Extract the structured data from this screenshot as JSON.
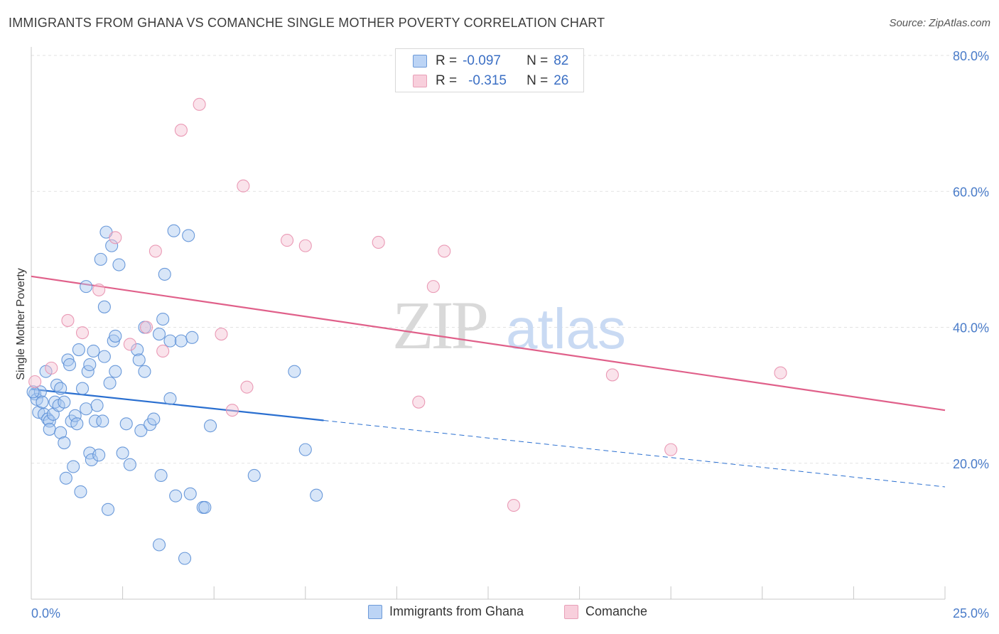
{
  "header": {
    "title": "IMMIGRANTS FROM GHANA VS COMANCHE SINGLE MOTHER POVERTY CORRELATION CHART",
    "source": "Source: ZipAtlas.com"
  },
  "watermark": {
    "zip": "ZIP",
    "atlas": "atlas"
  },
  "colors": {
    "blue_fill": "#a9c8f0",
    "blue_stroke": "#5b8fd6",
    "blue_line": "#2a6fd0",
    "pink_fill": "#f5c0d2",
    "pink_stroke": "#e890ae",
    "pink_line": "#e0608a",
    "tick_text": "#4a7cc9"
  },
  "legend": {
    "r_label": "R =",
    "n_label": "N =",
    "series": [
      {
        "r": "-0.097",
        "n": "82"
      },
      {
        "r": "-0.315",
        "n": "26"
      }
    ]
  },
  "chart_data": {
    "type": "scatter",
    "xlabel": "",
    "ylabel": "Single Mother Poverty",
    "xlim": [
      0,
      25
    ],
    "ylim": [
      0,
      80
    ],
    "x_tick_labels": [
      "0.0%",
      "25.0%"
    ],
    "y_ticks": [
      20,
      40,
      60,
      80
    ],
    "y_tick_labels": [
      "20.0%",
      "40.0%",
      "60.0%",
      "80.0%"
    ],
    "grid": true,
    "legend_position": "bottom",
    "series": [
      {
        "name": "Immigrants from Ghana",
        "color": "#a9c8f0",
        "points": [
          [
            0.1,
            30.2
          ],
          [
            0.15,
            29.4
          ],
          [
            0.2,
            27.5
          ],
          [
            0.25,
            30.5
          ],
          [
            0.3,
            29
          ],
          [
            0.35,
            27.2
          ],
          [
            0.4,
            33.5
          ],
          [
            0.45,
            26.5
          ],
          [
            0.5,
            26.2
          ],
          [
            0.5,
            25
          ],
          [
            0.6,
            27.2
          ],
          [
            0.65,
            29
          ],
          [
            0.7,
            31.5
          ],
          [
            0.75,
            28.5
          ],
          [
            0.8,
            31
          ],
          [
            0.8,
            24.5
          ],
          [
            0.9,
            23
          ],
          [
            0.9,
            29
          ],
          [
            0.95,
            17.8
          ],
          [
            1.0,
            35.2
          ],
          [
            1.05,
            34.5
          ],
          [
            1.1,
            26.2
          ],
          [
            1.15,
            19.5
          ],
          [
            1.2,
            27
          ],
          [
            1.25,
            25.8
          ],
          [
            1.3,
            36.7
          ],
          [
            1.35,
            15.8
          ],
          [
            1.4,
            31
          ],
          [
            1.5,
            28
          ],
          [
            1.5,
            46
          ],
          [
            1.6,
            21.5
          ],
          [
            1.55,
            33.5
          ],
          [
            1.6,
            34.5
          ],
          [
            1.65,
            20.5
          ],
          [
            1.7,
            36.5
          ],
          [
            1.75,
            26.2
          ],
          [
            1.8,
            28.5
          ],
          [
            1.85,
            21.2
          ],
          [
            1.9,
            50
          ],
          [
            1.95,
            26.2
          ],
          [
            2.0,
            43
          ],
          [
            2.0,
            35.7
          ],
          [
            2.05,
            54
          ],
          [
            2.1,
            13.2
          ],
          [
            2.15,
            31.8
          ],
          [
            2.2,
            52
          ],
          [
            2.25,
            38
          ],
          [
            2.3,
            38.7
          ],
          [
            2.3,
            33.5
          ],
          [
            2.4,
            49.2
          ],
          [
            2.5,
            21.5
          ],
          [
            2.6,
            25.8
          ],
          [
            2.7,
            19.8
          ],
          [
            2.9,
            36.7
          ],
          [
            2.95,
            35.2
          ],
          [
            3.0,
            24.8
          ],
          [
            3.1,
            33.5
          ],
          [
            3.1,
            40
          ],
          [
            3.25,
            25.7
          ],
          [
            3.35,
            26.5
          ],
          [
            3.5,
            8
          ],
          [
            3.55,
            18.2
          ],
          [
            3.5,
            39
          ],
          [
            3.6,
            41.2
          ],
          [
            3.65,
            47.8
          ],
          [
            3.8,
            29.5
          ],
          [
            3.8,
            38
          ],
          [
            3.9,
            54.2
          ],
          [
            3.95,
            15.2
          ],
          [
            4.1,
            38
          ],
          [
            4.2,
            6
          ],
          [
            4.3,
            53.5
          ],
          [
            4.35,
            15.5
          ],
          [
            4.4,
            38.5
          ],
          [
            4.7,
            13.5
          ],
          [
            4.75,
            13.5
          ],
          [
            4.9,
            25.5
          ],
          [
            6.1,
            18.2
          ],
          [
            7.2,
            33.5
          ],
          [
            7.5,
            22
          ],
          [
            7.8,
            15.3
          ],
          [
            0.05,
            30.5
          ]
        ]
      },
      {
        "name": "Comanche",
        "color": "#f5c0d2",
        "points": [
          [
            0.1,
            32
          ],
          [
            0.55,
            34
          ],
          [
            1.0,
            41
          ],
          [
            1.4,
            39.2
          ],
          [
            1.85,
            45.5
          ],
          [
            2.3,
            53.2
          ],
          [
            2.7,
            37.5
          ],
          [
            3.15,
            40
          ],
          [
            3.4,
            51.2
          ],
          [
            3.6,
            36.5
          ],
          [
            4.1,
            69
          ],
          [
            4.6,
            72.8
          ],
          [
            5.2,
            39
          ],
          [
            5.5,
            27.8
          ],
          [
            5.8,
            60.8
          ],
          [
            5.9,
            31.2
          ],
          [
            7.0,
            52.8
          ],
          [
            7.5,
            52
          ],
          [
            9.5,
            52.5
          ],
          [
            10.6,
            29
          ],
          [
            11.0,
            46
          ],
          [
            11.3,
            51.2
          ],
          [
            13.2,
            13.8
          ],
          [
            15.9,
            33
          ],
          [
            17.5,
            22
          ],
          [
            20.5,
            33.3
          ]
        ]
      }
    ],
    "trendlines": [
      {
        "series": "Immigrants from Ghana",
        "x": [
          0,
          8
        ],
        "y": [
          30.9,
          26.3
        ],
        "dashed_extension_to": 25
      },
      {
        "series": "Comanche",
        "x": [
          0,
          25
        ],
        "y": [
          47.5,
          27.8
        ]
      }
    ]
  }
}
